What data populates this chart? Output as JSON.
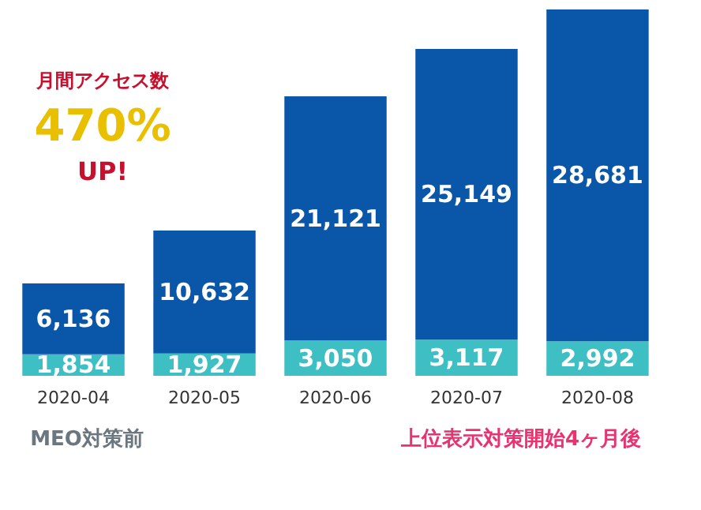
{
  "chart_data": {
    "type": "bar",
    "stacked": true,
    "categories": [
      "2020-04",
      "2020-05",
      "2020-06",
      "2020-07",
      "2020-08"
    ],
    "series": [
      {
        "color": "#3ebfc4",
        "values": [
          1854,
          1927,
          3050,
          3117,
          2992
        ],
        "value_labels": [
          "1,854",
          "1,927",
          "3,050",
          "3,117",
          "2,992"
        ]
      },
      {
        "color": "#0a56a8",
        "values": [
          6136,
          10632,
          21121,
          25149,
          28681
        ],
        "value_labels": [
          "6,136",
          "10,632",
          "21,121",
          "25,149",
          "28,681"
        ]
      }
    ],
    "annotations": [
      "月間アクセス数",
      "470%",
      "UP!",
      "MEO対策前",
      "上位表示対策開始4ヶ月後"
    ]
  }
}
